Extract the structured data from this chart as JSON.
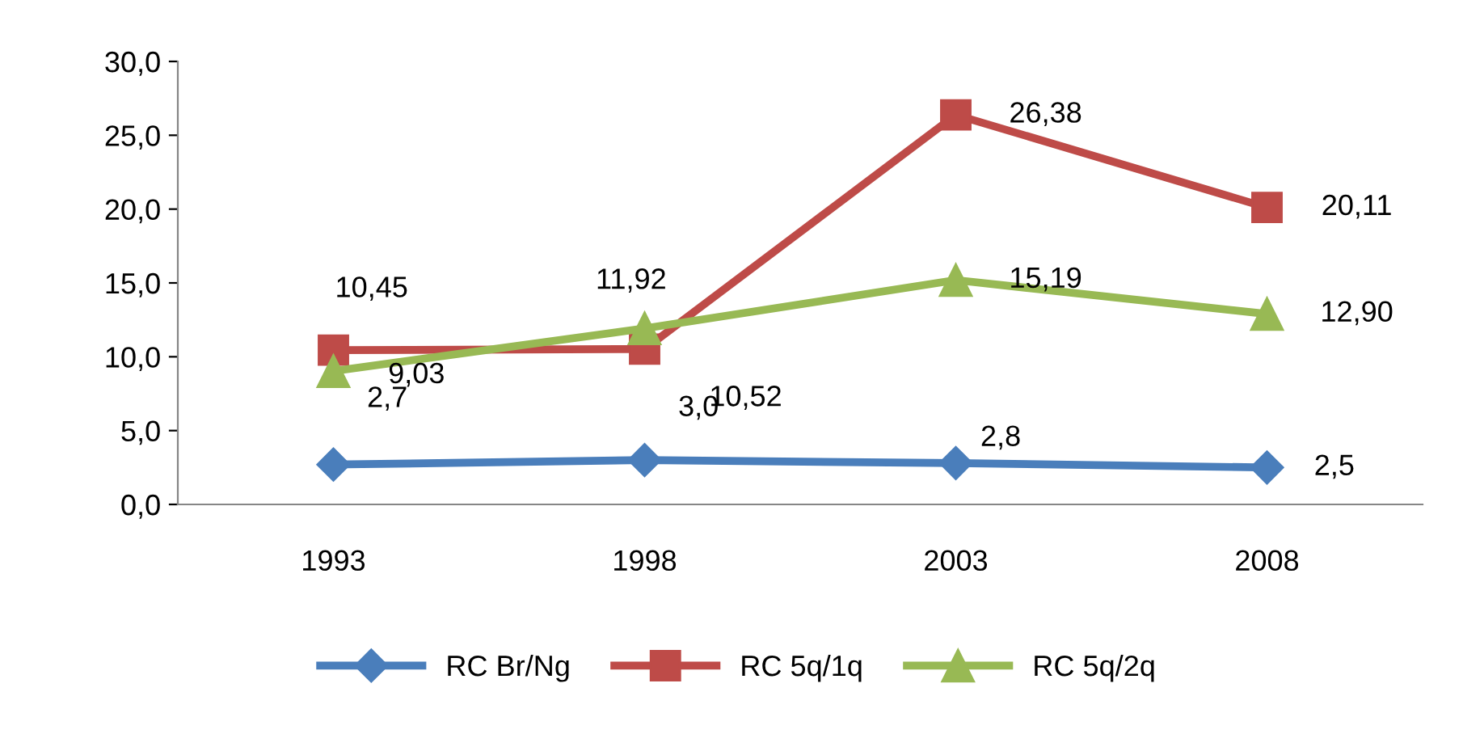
{
  "chart_data": {
    "type": "line",
    "categories": [
      "1993",
      "1998",
      "2003",
      "2008"
    ],
    "series": [
      {
        "name": "RC Br/Ng",
        "color": "#4a7ebb",
        "marker": "diamond",
        "values": [
          2.7,
          3.0,
          2.8,
          2.5
        ],
        "value_labels": [
          "2,7",
          "3,0",
          "2,8",
          "2,5"
        ]
      },
      {
        "name": "RC 5q/1q",
        "color": "#be4b48",
        "marker": "square",
        "values": [
          10.45,
          10.52,
          26.38,
          20.11
        ],
        "value_labels": [
          "10,45",
          "10,52",
          "26,38",
          "20,11"
        ]
      },
      {
        "name": "RC 5q/2q",
        "color": "#98b954",
        "marker": "triangle",
        "values": [
          9.03,
          11.92,
          15.19,
          12.9
        ],
        "value_labels": [
          "9,03",
          "11,92",
          "15,19",
          "12,90"
        ]
      }
    ],
    "ylim": [
      0,
      30
    ],
    "yticks": [
      {
        "value": 0,
        "label": "0,0"
      },
      {
        "value": 5,
        "label": "5,0"
      },
      {
        "value": 10,
        "label": "10,0"
      },
      {
        "value": 15,
        "label": "15,0"
      },
      {
        "value": 20,
        "label": "20,0"
      },
      {
        "value": 25,
        "label": "25,0"
      },
      {
        "value": 30,
        "label": "30,0"
      }
    ],
    "grid": false,
    "legend": "bottom"
  }
}
